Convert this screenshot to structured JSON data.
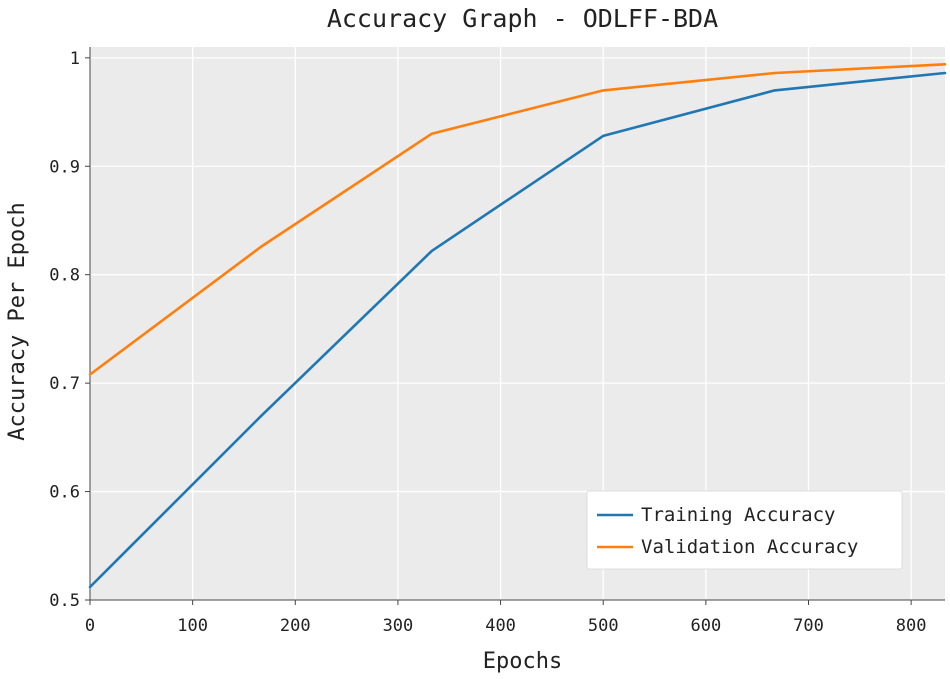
{
  "chart_data": {
    "type": "line",
    "title": "Accuracy Graph - ODLFF-BDA",
    "xlabel": "Epochs",
    "ylabel": "Accuracy Per Epoch",
    "xlim": [
      0,
      833
    ],
    "ylim": [
      0.5,
      1.01
    ],
    "xticks": [
      0,
      100,
      200,
      300,
      400,
      500,
      600,
      700,
      800
    ],
    "xtick_labels": [
      "0",
      "100",
      "200",
      "300",
      "400",
      "500",
      "600",
      "700",
      "800"
    ],
    "yticks": [
      0.5,
      0.6,
      0.7,
      0.8,
      0.9,
      1.0
    ],
    "ytick_labels": [
      "0.5",
      "0.6",
      "0.7",
      "0.8",
      "0.9",
      "1"
    ],
    "grid": true,
    "legend_position": "bottom-right",
    "series": [
      {
        "name": "Training Accuracy",
        "color": "#1f77b4",
        "x": [
          0,
          167,
          333,
          500,
          667,
          833
        ],
        "y": [
          0.512,
          0.67,
          0.822,
          0.928,
          0.97,
          0.986
        ]
      },
      {
        "name": "Validation Accuracy",
        "color": "#ff7f0e",
        "x": [
          0,
          167,
          333,
          500,
          667,
          833
        ],
        "y": [
          0.708,
          0.826,
          0.93,
          0.97,
          0.986,
          0.994
        ]
      }
    ]
  }
}
